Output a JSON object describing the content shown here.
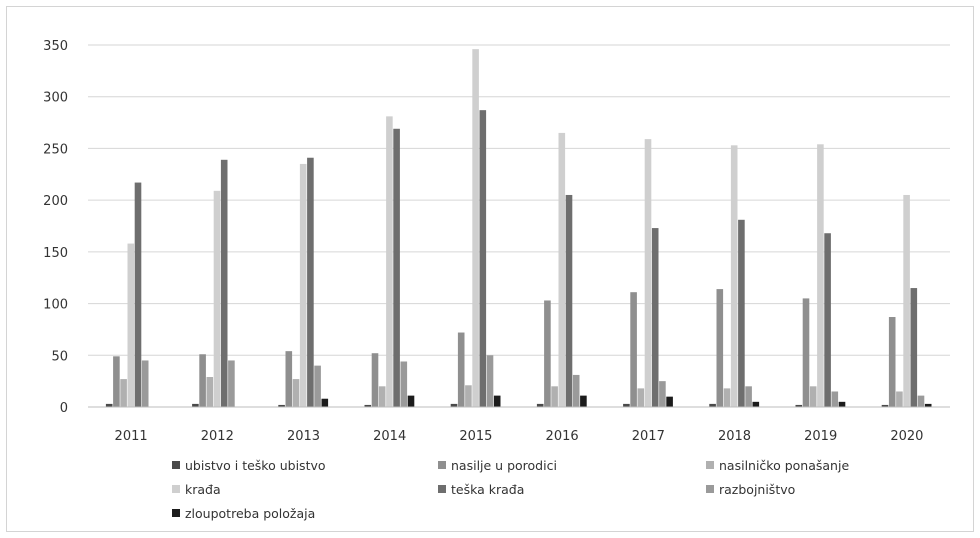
{
  "chart_data": {
    "type": "bar",
    "title": "",
    "xlabel": "",
    "ylabel": "",
    "ylim": [
      0,
      350
    ],
    "yticks": [
      0,
      50,
      100,
      150,
      200,
      250,
      300,
      350
    ],
    "grid": true,
    "legend_position": "bottom",
    "categories": [
      "2011",
      "2012",
      "2013",
      "2014",
      "2015",
      "2016",
      "2017",
      "2018",
      "2019",
      "2020"
    ],
    "series": [
      {
        "name": "ubistvo i teško ubistvo",
        "color": "#4a4a4a",
        "values": [
          3,
          3,
          2,
          2,
          3,
          3,
          3,
          3,
          2,
          2
        ]
      },
      {
        "name": "nasilje u porodici",
        "color": "#8f8f8f",
        "values": [
          49,
          51,
          54,
          52,
          72,
          103,
          111,
          114,
          105,
          87
        ]
      },
      {
        "name": "nasilničko ponašanje",
        "color": "#b0b0b0",
        "values": [
          27,
          29,
          27,
          20,
          21,
          20,
          18,
          18,
          20,
          15
        ]
      },
      {
        "name": "krađa",
        "color": "#cfcfcf",
        "values": [
          158,
          209,
          235,
          281,
          346,
          265,
          259,
          253,
          254,
          205
        ]
      },
      {
        "name": "teška krađa",
        "color": "#6e6e6e",
        "values": [
          217,
          239,
          241,
          269,
          287,
          205,
          173,
          181,
          168,
          115
        ]
      },
      {
        "name": "razbojništvo",
        "color": "#9a9a9a",
        "values": [
          45,
          45,
          40,
          44,
          50,
          31,
          25,
          20,
          15,
          11
        ]
      },
      {
        "name": "zloupotreba položaja",
        "color": "#1c1c1c",
        "values": [
          0,
          0,
          8,
          11,
          11,
          11,
          10,
          5,
          5,
          3
        ]
      }
    ]
  }
}
